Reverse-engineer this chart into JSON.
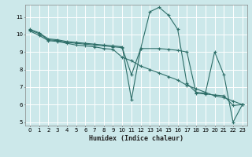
{
  "xlabel": "Humidex (Indice chaleur)",
  "bg_color": "#cce8ea",
  "grid_color": "#ffffff",
  "line_color": "#2d6e68",
  "xlim": [
    -0.5,
    23.5
  ],
  "ylim": [
    4.8,
    11.7
  ],
  "yticks": [
    5,
    6,
    7,
    8,
    9,
    10,
    11
  ],
  "xticks": [
    0,
    1,
    2,
    3,
    4,
    5,
    6,
    7,
    8,
    9,
    10,
    11,
    12,
    13,
    14,
    15,
    16,
    17,
    18,
    19,
    20,
    21,
    22,
    23
  ],
  "line1_x": [
    0,
    1,
    2,
    3,
    4,
    5,
    6,
    7,
    8,
    9,
    10,
    11,
    12,
    13,
    14,
    15,
    16,
    17,
    18,
    19,
    20,
    21,
    22,
    23
  ],
  "line1_y": [
    10.3,
    10.1,
    9.75,
    9.7,
    9.6,
    9.55,
    9.5,
    9.45,
    9.4,
    9.35,
    9.3,
    6.3,
    9.2,
    11.3,
    11.55,
    11.1,
    10.3,
    7.2,
    6.7,
    6.65,
    9.0,
    7.7,
    5.0,
    6.0
  ],
  "line2_x": [
    0,
    1,
    2,
    3,
    4,
    5,
    6,
    7,
    8,
    9,
    10,
    11,
    12,
    14,
    15,
    16,
    17,
    18,
    19,
    20,
    21,
    22,
    23
  ],
  "line2_y": [
    10.25,
    10.05,
    9.7,
    9.65,
    9.55,
    9.5,
    9.45,
    9.4,
    9.35,
    9.3,
    9.25,
    7.7,
    9.2,
    9.2,
    9.15,
    9.1,
    9.0,
    6.65,
    6.6,
    6.55,
    6.5,
    5.95,
    6.0
  ],
  "line3_x": [
    0,
    1,
    2,
    3,
    4,
    5,
    6,
    7,
    8,
    9,
    10,
    11,
    12,
    13,
    14,
    15,
    16,
    17,
    18,
    19,
    20,
    21,
    22,
    23
  ],
  "line3_y": [
    10.2,
    9.95,
    9.65,
    9.6,
    9.5,
    9.4,
    9.35,
    9.3,
    9.2,
    9.15,
    8.7,
    8.5,
    8.2,
    8.0,
    7.8,
    7.6,
    7.4,
    7.1,
    6.9,
    6.7,
    6.5,
    6.4,
    6.2,
    6.0
  ]
}
